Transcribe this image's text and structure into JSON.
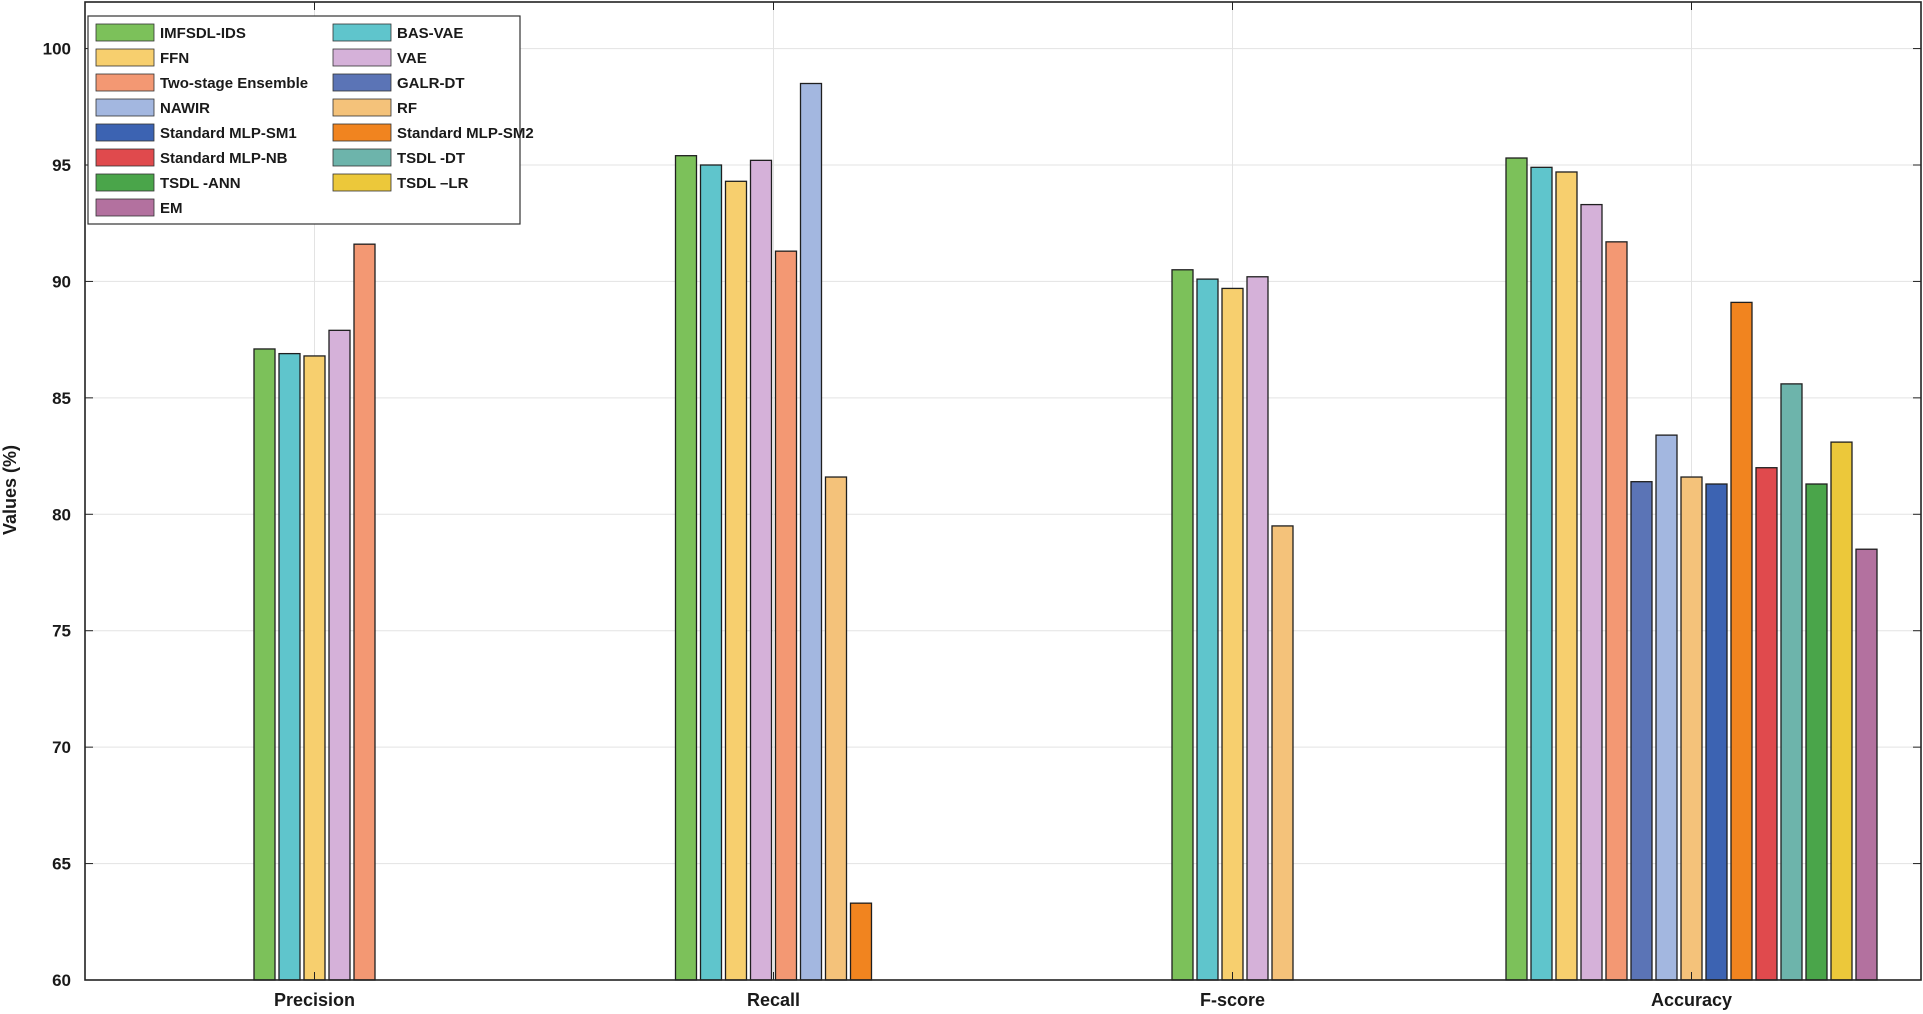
{
  "chart_data": {
    "type": "bar",
    "title": "",
    "xlabel": "",
    "ylabel": "Values (%)",
    "ylim": [
      60,
      102
    ],
    "yticks": [
      60,
      65,
      70,
      75,
      80,
      85,
      90,
      95,
      100
    ],
    "grid": true,
    "legend_position": "top-left",
    "categories": [
      "Precision",
      "Recall",
      "F-score",
      "Accuracy"
    ],
    "series": [
      {
        "name": "IMFSDL-IDS",
        "color": "#7cc15a",
        "values": [
          87.1,
          95.4,
          90.5,
          95.3
        ]
      },
      {
        "name": "BAS-VAE",
        "color": "#5fc5cc",
        "values": [
          86.9,
          95.0,
          90.1,
          94.9
        ]
      },
      {
        "name": "FFN",
        "color": "#f7cf6e",
        "values": [
          86.8,
          94.3,
          89.7,
          94.7
        ]
      },
      {
        "name": "VAE",
        "color": "#d5b1d9",
        "values": [
          87.9,
          95.2,
          90.2,
          93.3
        ]
      },
      {
        "name": "Two-stage Ensemble",
        "color": "#f39873",
        "values": [
          91.6,
          91.3,
          null,
          91.7
        ]
      },
      {
        "name": "GALR-DT",
        "color": "#5b74b6",
        "values": [
          null,
          null,
          null,
          81.4
        ]
      },
      {
        "name": "NAWIR",
        "color": "#a3b7e0",
        "values": [
          null,
          98.5,
          null,
          83.4
        ]
      },
      {
        "name": "RF",
        "color": "#f4c27a",
        "values": [
          null,
          81.6,
          79.5,
          81.6
        ]
      },
      {
        "name": "Standard MLP-SM1",
        "color": "#3c63b2",
        "values": [
          null,
          null,
          null,
          81.3
        ]
      },
      {
        "name": "Standard MLP-SM2",
        "color": "#f1841f",
        "values": [
          null,
          63.3,
          null,
          89.1
        ]
      },
      {
        "name": "Standard MLP-NB",
        "color": "#e04a4d",
        "values": [
          null,
          null,
          null,
          82.0
        ]
      },
      {
        "name": "TSDL -DT",
        "color": "#6db4ab",
        "values": [
          null,
          null,
          null,
          85.6
        ]
      },
      {
        "name": "TSDL -ANN",
        "color": "#4aa54a",
        "values": [
          null,
          null,
          null,
          81.3
        ]
      },
      {
        "name": "TSDL –LR",
        "color": "#ecc83a",
        "values": [
          null,
          null,
          null,
          83.1
        ]
      },
      {
        "name": "EM",
        "color": "#b3719f",
        "values": [
          null,
          null,
          null,
          78.5
        ]
      }
    ]
  }
}
